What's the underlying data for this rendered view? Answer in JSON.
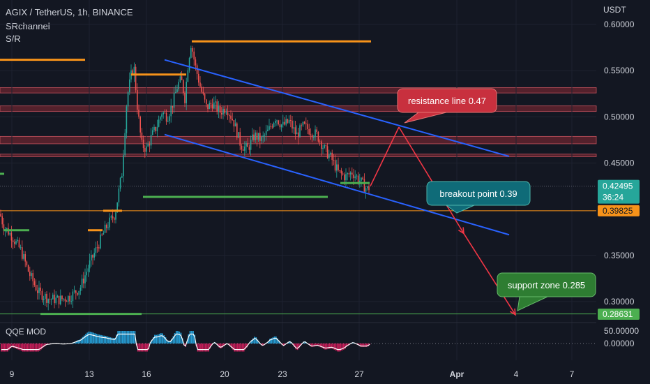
{
  "header": {
    "symbol": "AGIX / TetherUS, 1h, BINANCE",
    "indicator1": "SRchannel",
    "indicator2": "S/R"
  },
  "currency_label": "USDT",
  "last_price": {
    "value": "0.42495",
    "countdown": "36:24",
    "color": "#26a69a"
  },
  "marked_prices": [
    {
      "value": "0.39825",
      "color": "#f7931a"
    },
    {
      "value": "0.28631",
      "color": "#4caf50"
    }
  ],
  "oscillator": {
    "name": "QQE MOD",
    "ticks": [
      "50.00000",
      "0.00000"
    ]
  },
  "annotations": {
    "resistance": "resistance line 0.47",
    "breakout": "breakout point 0.39",
    "support": "support zone 0.285"
  },
  "colors": {
    "up": "#26a69a",
    "down": "#ef5350",
    "channel": "#2962ff",
    "sr_orange": "#f7931a",
    "sr_green": "#4caf50",
    "zone": "#8b2a35",
    "arrow": "#f23645",
    "callout_red": "#c8303e",
    "callout_teal": "#0f6b78",
    "callout_green": "#2e7d32",
    "qqe_blue": "#29b6f6",
    "qqe_pink": "#e91e63"
  },
  "chart_data": {
    "type": "candlestick",
    "title": "AGIX / TetherUS, 1h, BINANCE",
    "y_unit": "USDT",
    "ylim": [
      0.272,
      0.608
    ],
    "y_ticks": [
      "0.60000",
      "0.55000",
      "0.50000",
      "0.45000",
      "0.35000",
      "0.30000"
    ],
    "x_ticks": [
      "9",
      "13",
      "16",
      "20",
      "23",
      "27",
      "Apr",
      "4",
      "7"
    ],
    "price_path": [
      [
        0,
        0.395
      ],
      [
        5,
        0.382
      ],
      [
        16,
        0.372
      ],
      [
        30,
        0.355
      ],
      [
        42,
        0.33
      ],
      [
        55,
        0.31
      ],
      [
        70,
        0.303
      ],
      [
        85,
        0.302
      ],
      [
        100,
        0.305
      ],
      [
        115,
        0.315
      ],
      [
        128,
        0.34
      ],
      [
        140,
        0.36
      ],
      [
        152,
        0.38
      ],
      [
        165,
        0.395
      ],
      [
        175,
        0.44
      ],
      [
        182,
        0.52
      ],
      [
        188,
        0.545
      ],
      [
        192,
        0.555
      ],
      [
        197,
        0.51
      ],
      [
        203,
        0.47
      ],
      [
        210,
        0.465
      ],
      [
        218,
        0.48
      ],
      [
        225,
        0.49
      ],
      [
        232,
        0.505
      ],
      [
        240,
        0.5
      ],
      [
        248,
        0.515
      ],
      [
        255,
        0.535
      ],
      [
        260,
        0.54
      ],
      [
        265,
        0.52
      ],
      [
        270,
        0.56
      ],
      [
        274,
        0.58
      ],
      [
        280,
        0.555
      ],
      [
        288,
        0.53
      ],
      [
        296,
        0.51
      ],
      [
        305,
        0.515
      ],
      [
        315,
        0.505
      ],
      [
        325,
        0.51
      ],
      [
        335,
        0.495
      ],
      [
        345,
        0.47
      ],
      [
        355,
        0.465
      ],
      [
        365,
        0.48
      ],
      [
        375,
        0.475
      ],
      [
        385,
        0.485
      ],
      [
        395,
        0.5
      ],
      [
        405,
        0.49
      ],
      [
        415,
        0.495
      ],
      [
        425,
        0.48
      ],
      [
        435,
        0.49
      ],
      [
        445,
        0.485
      ],
      [
        455,
        0.48
      ],
      [
        465,
        0.465
      ],
      [
        475,
        0.455
      ],
      [
        485,
        0.44
      ],
      [
        495,
        0.435
      ],
      [
        505,
        0.44
      ],
      [
        515,
        0.432
      ],
      [
        522,
        0.425
      ],
      [
        527,
        0.4215
      ],
      [
        531,
        0.42495
      ]
    ],
    "sr_lines": [
      {
        "x": [
          0,
          122
        ],
        "y": 0.5617,
        "color": "#f7931a"
      },
      {
        "x": [
          275,
          532
        ],
        "y": 0.5817,
        "color": "#f7931a"
      },
      {
        "x": [
          188,
          267
        ],
        "y": 0.5458,
        "color": "#f7931a"
      },
      {
        "x": [
          148,
          175
        ],
        "y": 0.3983,
        "color": "#f7931a"
      },
      {
        "x": [
          126,
          147
        ],
        "y": 0.3772,
        "color": "#f7931a"
      },
      {
        "x": [
          5,
          42
        ],
        "y": 0.3772,
        "color": "#4caf50"
      },
      {
        "x": [
          205,
          470
        ],
        "y": 0.4133,
        "color": "#4caf50"
      },
      {
        "x": [
          58,
          203
        ],
        "y": 0.2866,
        "color": "#4caf50"
      },
      {
        "x": [
          0,
          6
        ],
        "y": 0.4383,
        "color": "#4caf50"
      },
      {
        "x": [
          488,
          530
        ],
        "y": 0.4283,
        "color": "#4caf50"
      }
    ],
    "resistance_zones": [
      [
        0.5258,
        0.5316
      ],
      [
        0.5058,
        0.5118
      ],
      [
        0.4708,
        0.4788
      ],
      [
        0.4568,
        0.4596
      ]
    ],
    "horizontal_levels": [
      {
        "y": 0.3983,
        "color": "#f7931a"
      },
      {
        "y": 0.2866,
        "color": "#4caf50"
      }
    ],
    "channel": [
      {
        "x": [
          236,
          730
        ],
        "y": [
          0.5617,
          0.4572
        ]
      },
      {
        "x": [
          236,
          730
        ],
        "y": [
          0.4808,
          0.3723
        ]
      }
    ],
    "projection_path": [
      {
        "x": 531,
        "y": 0.4249
      },
      {
        "x": 572,
        "y": 0.4889
      },
      {
        "x": 665,
        "y": 0.3737
      },
      {
        "x": 739,
        "y": 0.2857
      }
    ],
    "qqe_ylim": [
      -32,
      50
    ]
  }
}
